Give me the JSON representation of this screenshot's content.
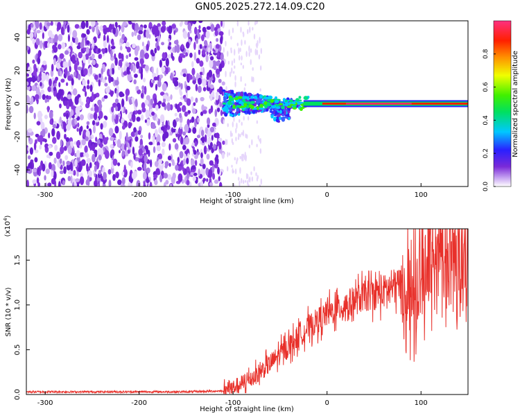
{
  "title": "GN05.2025.272.14.09.C20",
  "colors": {
    "signal_line": "#e8302a",
    "axis": "#000000",
    "purple": "#7a2ad8",
    "light_purple": "#c9a8f2"
  },
  "chart_data": [
    {
      "type": "heatmap",
      "title": "GN05.2025.272.14.09.C20",
      "xlabel": "Height of straight line (km)",
      "ylabel": "Frequency (Hz)",
      "xlim": [
        -320,
        150
      ],
      "ylim": [
        -50,
        50
      ],
      "xticks": [
        -300,
        -200,
        -100,
        0,
        100
      ],
      "yticks": [
        -40,
        -20,
        0,
        20,
        40
      ],
      "noise_region_end_km": -110,
      "signal_start_km": -110,
      "signal_center_hz": 0,
      "colorbar": {
        "label": "Normalized spectral amplitude",
        "range": [
          0,
          1
        ],
        "ticks": [
          0.0,
          0.2,
          0.4,
          0.6,
          0.8
        ],
        "tick_labels": [
          "0.0",
          "0.2",
          "0.4",
          "0.6",
          "0.8"
        ]
      }
    },
    {
      "type": "line",
      "xlabel": "Height of straight line (km)",
      "ylabel": "SNR (10 * v/v)",
      "scale_label": "(x10",
      "scale_exp": "4",
      "scale_close": ")",
      "xlim": [
        -320,
        150
      ],
      "ylim": [
        0,
        1.85
      ],
      "xticks": [
        -300,
        -200,
        -100,
        0,
        100
      ],
      "yticks": [
        0.0,
        0.5,
        1.0,
        1.5
      ],
      "ytick_labels": [
        "0.0",
        "0.5",
        "1.0",
        "1.5"
      ],
      "series": [
        {
          "name": "SNR",
          "x": [
            -320,
            -300,
            -250,
            -200,
            -150,
            -110,
            -100,
            -80,
            -60,
            -40,
            -20,
            0,
            20,
            40,
            60,
            80,
            90,
            100,
            110,
            120,
            130,
            140,
            150
          ],
          "y": [
            0.03,
            0.03,
            0.03,
            0.03,
            0.03,
            0.04,
            0.08,
            0.18,
            0.35,
            0.55,
            0.75,
            0.9,
            1.0,
            1.1,
            1.15,
            1.25,
            1.1,
            1.3,
            1.5,
            1.6,
            1.4,
            1.5,
            1.6
          ]
        }
      ]
    }
  ]
}
